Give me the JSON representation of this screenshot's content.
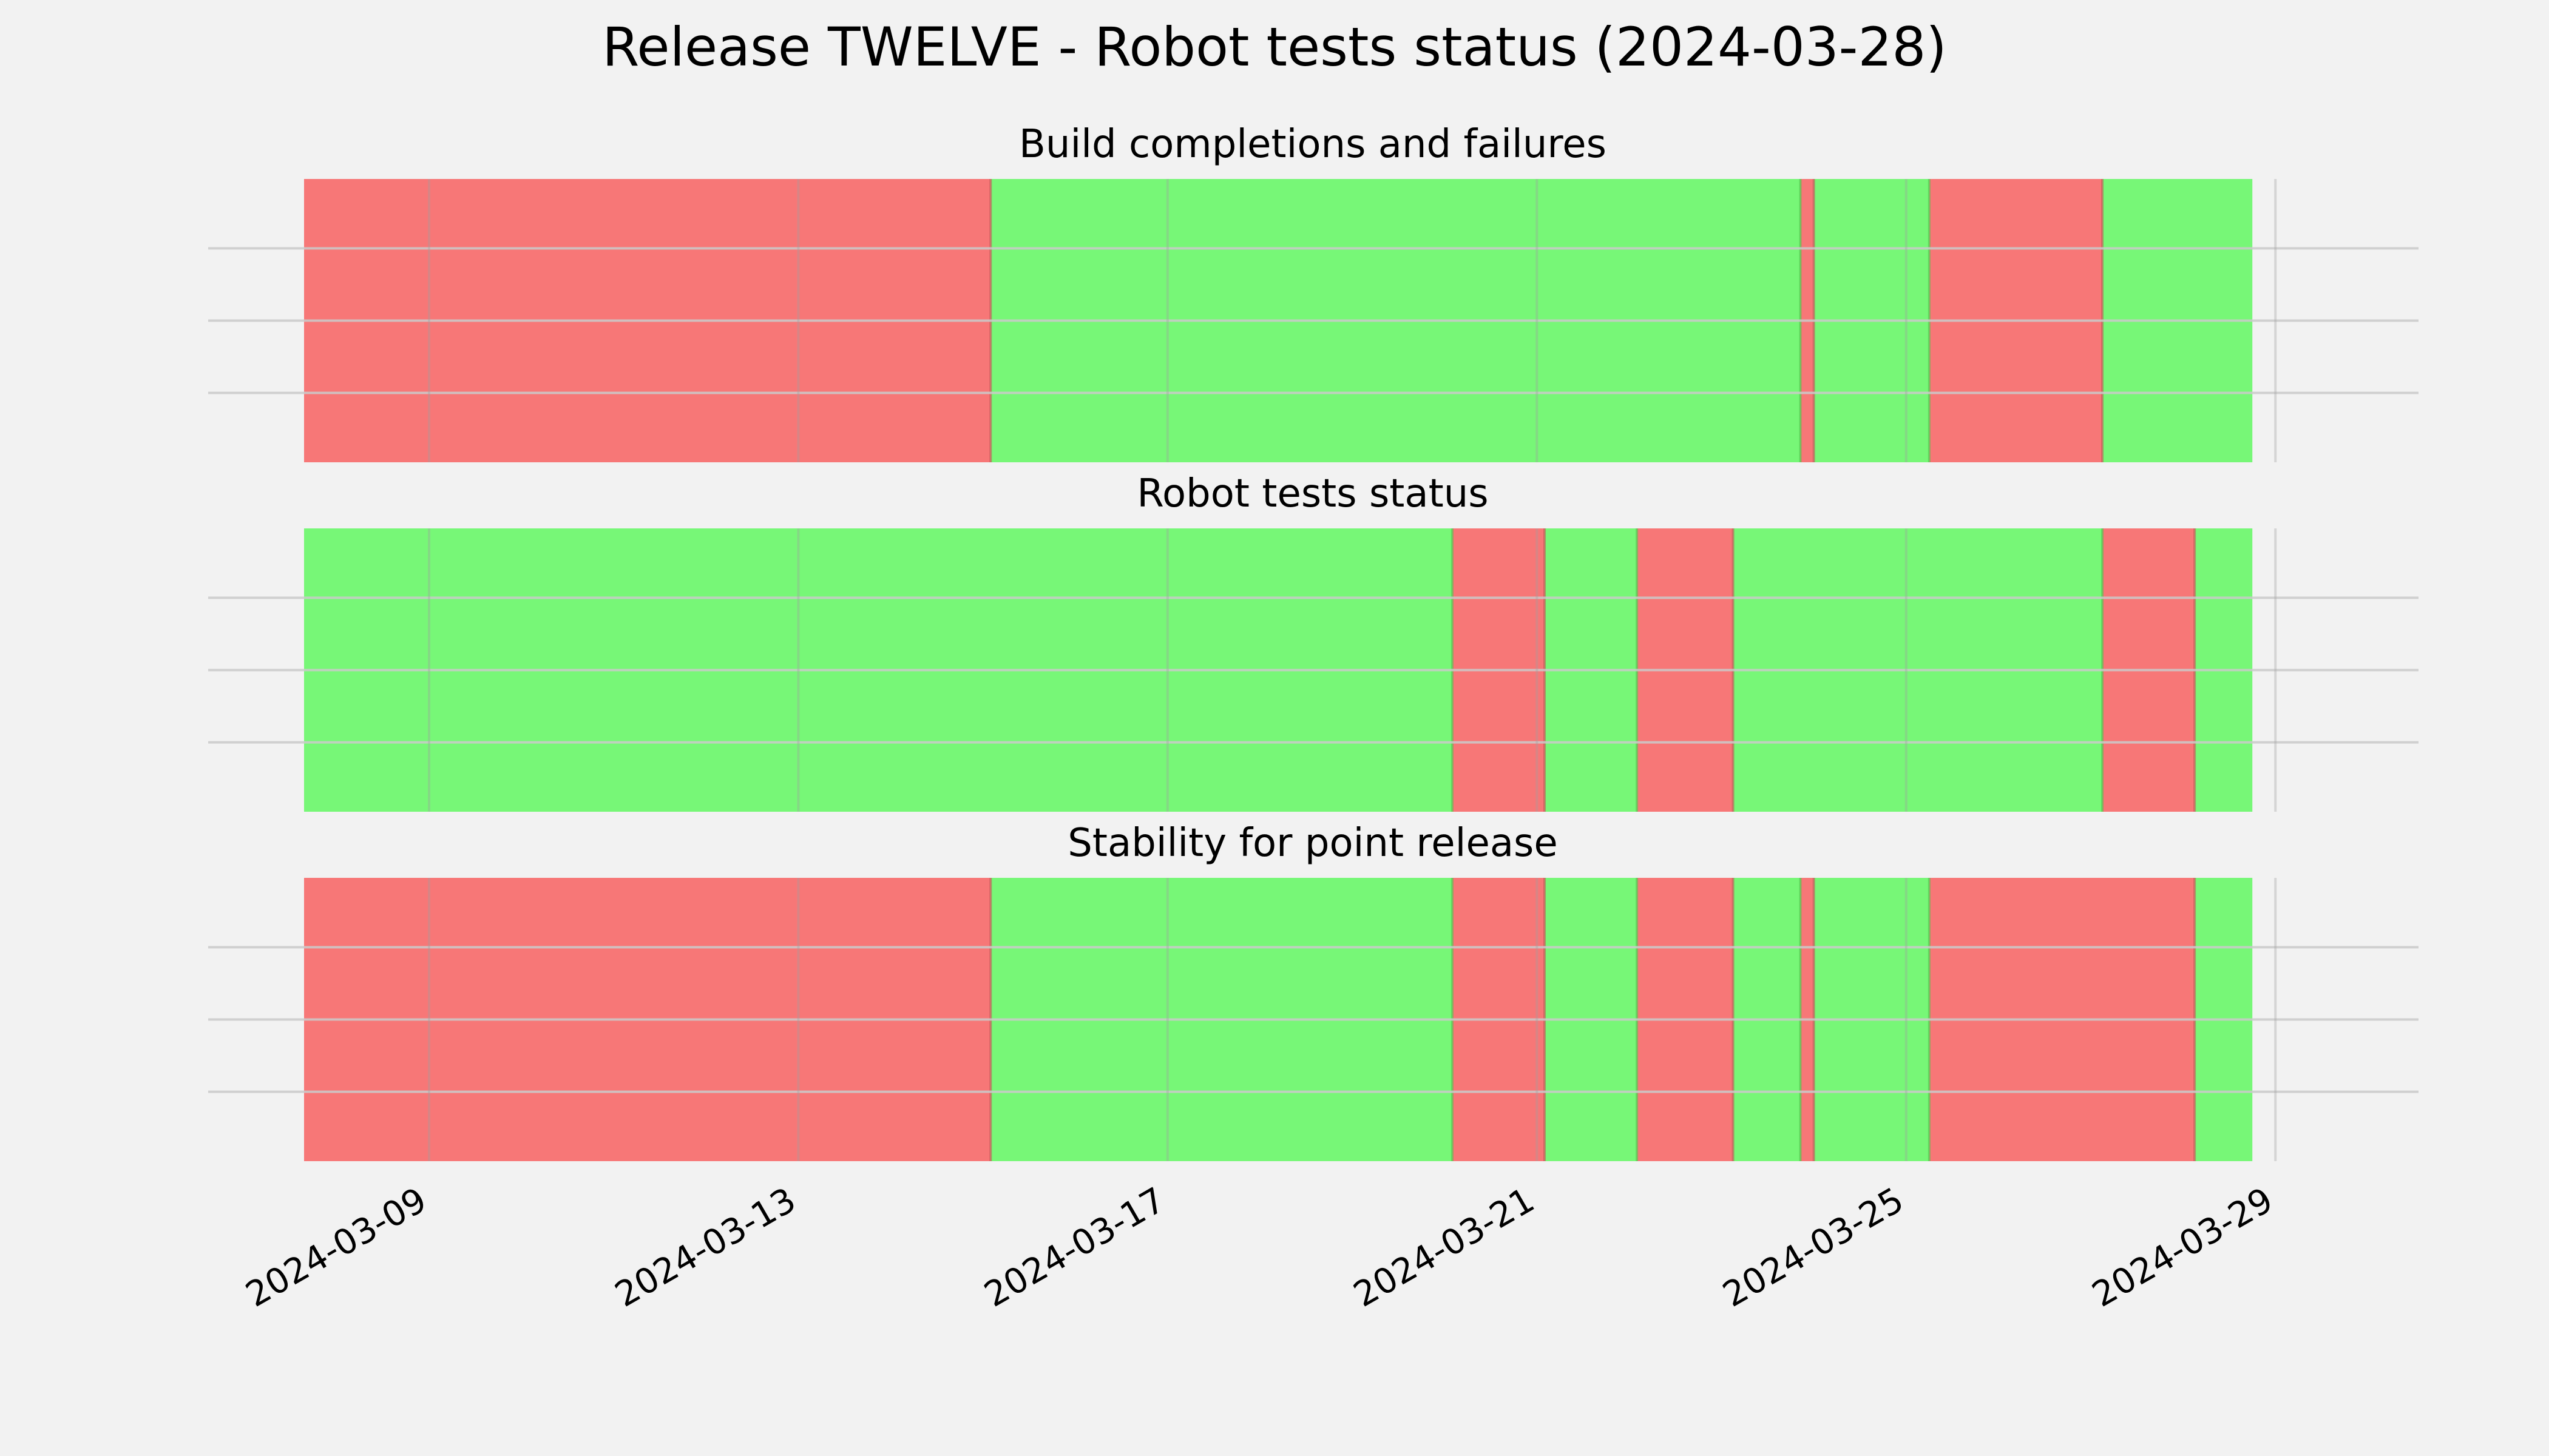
{
  "chart_data": {
    "type": "timeline",
    "title": "Release TWELVE - Robot tests status (2024-03-28)",
    "x_axis": {
      "type": "date",
      "range": [
        "2024-03-07T15:30",
        "2024-03-29T20:00"
      ],
      "ticks": [
        "2024-03-09",
        "2024-03-13",
        "2024-03-17",
        "2024-03-21",
        "2024-03-25",
        "2024-03-29"
      ],
      "tick_label_rotation": -30
    },
    "grid": true,
    "colors": {
      "pass": "#77f777",
      "fail": "#f77777",
      "background": "#f2f2f2",
      "grid": "#cbcbcb"
    },
    "panels": [
      {
        "title": "Build completions and failures",
        "segments": [
          {
            "start": "2024-03-07T15:30",
            "end": "2024-03-15T02:00",
            "status": "fail"
          },
          {
            "start": "2024-03-15T02:00",
            "end": "2024-03-23T20:30",
            "status": "pass"
          },
          {
            "start": "2024-03-23T20:30",
            "end": "2024-03-24T00:00",
            "status": "fail"
          },
          {
            "start": "2024-03-24T00:00",
            "end": "2024-03-25T06:00",
            "status": "pass"
          },
          {
            "start": "2024-03-25T06:00",
            "end": "2024-03-27T03:00",
            "status": "fail"
          },
          {
            "start": "2024-03-27T03:00",
            "end": "2024-03-28T18:00",
            "status": "pass"
          }
        ]
      },
      {
        "title": "Robot tests status",
        "segments": [
          {
            "start": "2024-03-07T15:30",
            "end": "2024-03-20T02:00",
            "status": "pass"
          },
          {
            "start": "2024-03-20T02:00",
            "end": "2024-03-21T02:00",
            "status": "fail"
          },
          {
            "start": "2024-03-21T02:00",
            "end": "2024-03-22T02:00",
            "status": "pass"
          },
          {
            "start": "2024-03-22T02:00",
            "end": "2024-03-23T03:00",
            "status": "fail"
          },
          {
            "start": "2024-03-23T03:00",
            "end": "2024-03-27T03:00",
            "status": "pass"
          },
          {
            "start": "2024-03-27T03:00",
            "end": "2024-03-28T03:00",
            "status": "fail"
          },
          {
            "start": "2024-03-28T03:00",
            "end": "2024-03-28T18:00",
            "status": "pass"
          }
        ]
      },
      {
        "title": "Stability for point release",
        "segments": [
          {
            "start": "2024-03-07T15:30",
            "end": "2024-03-15T02:00",
            "status": "fail"
          },
          {
            "start": "2024-03-15T02:00",
            "end": "2024-03-20T02:00",
            "status": "pass"
          },
          {
            "start": "2024-03-20T02:00",
            "end": "2024-03-21T02:00",
            "status": "fail"
          },
          {
            "start": "2024-03-21T02:00",
            "end": "2024-03-22T02:00",
            "status": "pass"
          },
          {
            "start": "2024-03-22T02:00",
            "end": "2024-03-23T03:00",
            "status": "fail"
          },
          {
            "start": "2024-03-23T03:00",
            "end": "2024-03-23T20:30",
            "status": "pass"
          },
          {
            "start": "2024-03-23T20:30",
            "end": "2024-03-24T00:00",
            "status": "fail"
          },
          {
            "start": "2024-03-24T00:00",
            "end": "2024-03-25T06:00",
            "status": "pass"
          },
          {
            "start": "2024-03-25T06:00",
            "end": "2024-03-28T03:00",
            "status": "fail"
          },
          {
            "start": "2024-03-28T03:00",
            "end": "2024-03-28T18:00",
            "status": "pass"
          }
        ]
      }
    ]
  }
}
